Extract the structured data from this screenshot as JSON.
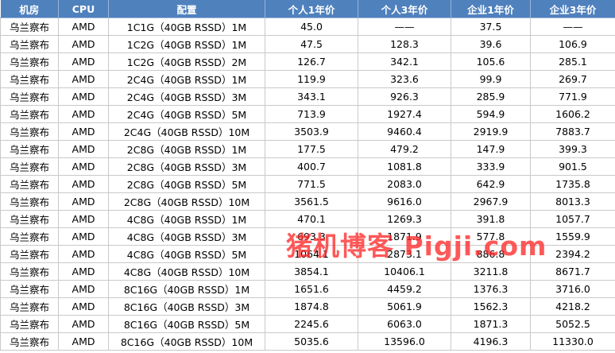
{
  "table": {
    "headers": [
      "机房",
      "CPU",
      "配置",
      "个人1年价",
      "个人3年价",
      "企业1年价",
      "企业3年价"
    ],
    "rows": [
      [
        "乌兰察布",
        "AMD",
        "1C1G（40GB RSSD）1M",
        "45.0",
        "——",
        "37.5",
        "——"
      ],
      [
        "乌兰察布",
        "AMD",
        "1C2G（40GB RSSD）1M",
        "47.5",
        "128.3",
        "39.6",
        "106.9"
      ],
      [
        "乌兰察布",
        "AMD",
        "1C2G（40GB RSSD）2M",
        "126.7",
        "342.1",
        "105.6",
        "285.1"
      ],
      [
        "乌兰察布",
        "AMD",
        "2C4G（40GB RSSD）1M",
        "119.9",
        "323.6",
        "99.9",
        "269.7"
      ],
      [
        "乌兰察布",
        "AMD",
        "2C4G（40GB RSSD）3M",
        "343.1",
        "926.3",
        "285.9",
        "771.9"
      ],
      [
        "乌兰察布",
        "AMD",
        "2C4G（40GB RSSD）5M",
        "713.9",
        "1927.4",
        "594.9",
        "1606.2"
      ],
      [
        "乌兰察布",
        "AMD",
        "2C4G（40GB RSSD）10M",
        "3503.9",
        "9460.4",
        "2919.9",
        "7883.7"
      ],
      [
        "乌兰察布",
        "AMD",
        "2C8G（40GB RSSD）1M",
        "177.5",
        "479.2",
        "147.9",
        "399.3"
      ],
      [
        "乌兰察布",
        "AMD",
        "2C8G（40GB RSSD）3M",
        "400.7",
        "1081.8",
        "333.9",
        "901.5"
      ],
      [
        "乌兰察布",
        "AMD",
        "2C8G（40GB RSSD）5M",
        "771.5",
        "2083.0",
        "642.9",
        "1735.8"
      ],
      [
        "乌兰察布",
        "AMD",
        "2C8G（40GB RSSD）10M",
        "3561.5",
        "9616.0",
        "2967.9",
        "8013.3"
      ],
      [
        "乌兰察布",
        "AMD",
        "4C8G（40GB RSSD）1M",
        "470.1",
        "1269.3",
        "391.8",
        "1057.7"
      ],
      [
        "乌兰察布",
        "AMD",
        "4C8G（40GB RSSD）3M",
        "693.3",
        "1871.9",
        "577.8",
        "1559.9"
      ],
      [
        "乌兰察布",
        "AMD",
        "4C8G（40GB RSSD）5M",
        "1064.1",
        "2873.1",
        "886.8",
        "2394.2"
      ],
      [
        "乌兰察布",
        "AMD",
        "4C8G（40GB RSSD）10M",
        "3854.1",
        "10406.1",
        "3211.8",
        "8671.7"
      ],
      [
        "乌兰察布",
        "AMD",
        "8C16G（40GB RSSD）1M",
        "1651.6",
        "4459.2",
        "1376.3",
        "3716.0"
      ],
      [
        "乌兰察布",
        "AMD",
        "8C16G（40GB RSSD）3M",
        "1874.8",
        "5061.9",
        "1562.3",
        "4218.2"
      ],
      [
        "乌兰察布",
        "AMD",
        "8C16G（40GB RSSD）5M",
        "2245.6",
        "6063.0",
        "1871.3",
        "5052.5"
      ],
      [
        "乌兰察布",
        "AMD",
        "8C16G（40GB RSSD）10M",
        "5035.6",
        "13596.0",
        "4196.3",
        "11330.0"
      ]
    ]
  },
  "watermark": {
    "text": "猪机博客 Pigji.com"
  },
  "colors": {
    "header_bg": "#4f81bd",
    "header_text": "#ffffff",
    "watermark": "#ff2a2a"
  }
}
